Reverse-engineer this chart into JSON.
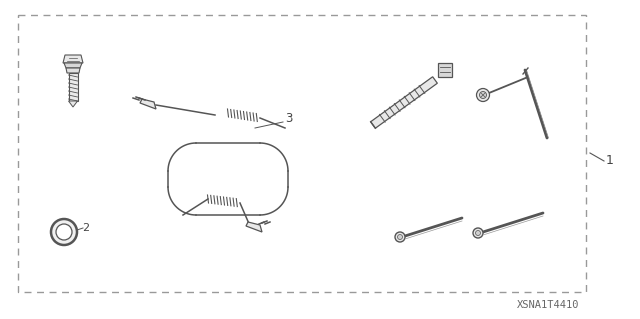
{
  "bg_color": "#ffffff",
  "line_color": "#555555",
  "text_color": "#444444",
  "part_number_text": "XSNA1T4410",
  "label_1": "1",
  "label_2": "2",
  "label_3": "3",
  "fig_width": 6.4,
  "fig_height": 3.19,
  "dpi": 100
}
